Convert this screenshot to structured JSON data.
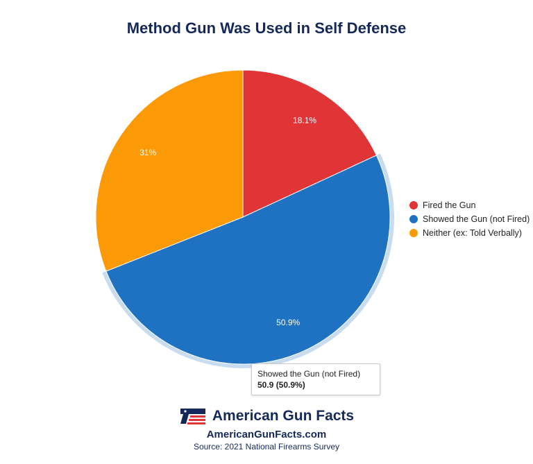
{
  "title": "Method Gun Was Used in Self Defense",
  "chart_data": {
    "type": "pie",
    "title": "Method Gun Was Used in Self Defense",
    "categories": [
      "Fired the Gun",
      "Showed the Gun (not Fired)",
      "Neither (ex: Told Verbally)"
    ],
    "values": [
      18.1,
      50.9,
      31
    ],
    "labels": [
      "18.1%",
      "50.9%",
      "31%"
    ],
    "colors": [
      "#e03436",
      "#1f72c1",
      "#fb9a06"
    ],
    "legend_position": "right",
    "highlighted": "Showed the Gun (not Fired)"
  },
  "legend": {
    "items": [
      {
        "label": "Fired the Gun",
        "color": "#e03436"
      },
      {
        "label": "Showed the Gun (not Fired)",
        "color": "#1f72c1"
      },
      {
        "label": "Neither (ex: Told Verbally)",
        "color": "#fb9a06"
      }
    ]
  },
  "tooltip": {
    "label": "Showed the Gun (not Fired)",
    "value": "50.9 (50.9%)"
  },
  "footer": {
    "brand": "American Gun Facts",
    "site": "AmericanGunFacts.com",
    "source": "Source: 2021 National Firearms Survey"
  }
}
